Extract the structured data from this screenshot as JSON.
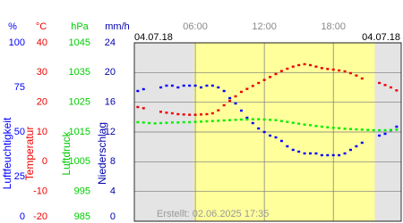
{
  "chart_data": {
    "type": "scatter",
    "date_left": "04.07.18",
    "date_right": "04.07.18",
    "credit": "Erstellt: 02.06.2025 17:35",
    "xlim": [
      0.7,
      23.9
    ],
    "xticks": [
      {
        "value": 6,
        "label": "06:00"
      },
      {
        "value": 12,
        "label": "12:00"
      },
      {
        "value": 18,
        "label": "18:00"
      }
    ],
    "daylight": [
      5.9,
      21.6
    ],
    "grid": true,
    "axes": [
      {
        "unit": "%",
        "title": "Luftfeuchtigkeit",
        "color": "#0000ff",
        "lim": [
          0,
          100
        ],
        "ticks": [
          0,
          25,
          50,
          75,
          100
        ]
      },
      {
        "unit": "°C",
        "title": "Temperatur",
        "color": "#ee0000",
        "lim": [
          -20,
          40
        ],
        "ticks": [
          -20,
          -10,
          0,
          10,
          20,
          30,
          40
        ]
      },
      {
        "unit": "hPa",
        "title": "Luftdruck",
        "color": "#00cc00",
        "lim": [
          985,
          1045
        ],
        "ticks": [
          985,
          995,
          1005,
          1015,
          1025,
          1035,
          1045
        ]
      },
      {
        "unit": "mm/h",
        "title": "Niederschlag",
        "color": "#0000aa",
        "lim": [
          0,
          24
        ],
        "ticks": [
          0,
          4,
          8,
          12,
          16,
          20,
          24
        ]
      }
    ],
    "x": [
      1,
      1.5,
      2,
      2.5,
      3,
      3.5,
      4,
      4.5,
      5,
      5.5,
      6,
      6.5,
      7,
      7.5,
      8,
      8.5,
      9,
      9.5,
      10,
      10.5,
      11,
      11.5,
      12,
      12.5,
      13,
      13.5,
      14,
      14.5,
      15,
      15.5,
      16,
      16.5,
      17,
      17.5,
      18,
      18.5,
      19,
      19.5,
      20,
      20.5,
      21,
      21.5,
      22,
      22.5,
      23,
      23.5
    ],
    "series": [
      {
        "axis": 0,
        "color": "#0000ff",
        "values": [
          73,
          74,
          null,
          null,
          75,
          76,
          76,
          75,
          76,
          76,
          76,
          75,
          76,
          76,
          75,
          73,
          69,
          66,
          62,
          58,
          55,
          52,
          50,
          48,
          47,
          45,
          42,
          40,
          39,
          38,
          38,
          38,
          37,
          37,
          37,
          37,
          38,
          40,
          42,
          44,
          null,
          null,
          48,
          49,
          51,
          53
        ]
      },
      {
        "axis": 1,
        "color": "#ee0000",
        "values": [
          18.4,
          18.0,
          null,
          null,
          16.8,
          16.5,
          16.3,
          16.0,
          15.9,
          15.8,
          15.8,
          15.9,
          16.0,
          16.3,
          17.3,
          19,
          20.5,
          22,
          23.5,
          24.5,
          25.5,
          26.5,
          27.5,
          28.5,
          29.5,
          30.5,
          31.3,
          32,
          32.5,
          32.8,
          32.5,
          32,
          31.5,
          31.2,
          31,
          30.7,
          30.4,
          29.8,
          29,
          28,
          null,
          null,
          26.5,
          25.8,
          25,
          24
        ]
      },
      {
        "axis": 2,
        "color": "#00ee00",
        "values": [
          1018.3,
          1018.2,
          1018.0,
          1017.9,
          1018.0,
          1018.1,
          1018.2,
          1018.2,
          1018.3,
          1018.3,
          1018.4,
          1018.5,
          1018.6,
          1018.7,
          1018.8,
          1018.9,
          1019.0,
          1019.1,
          1019.2,
          1019.2,
          1019.3,
          1019.3,
          1019.2,
          1019.1,
          1019.0,
          1018.7,
          1018.4,
          1018.1,
          1017.8,
          1017.5,
          1017.3,
          1017.0,
          1016.8,
          1016.6,
          1016.4,
          1016.3,
          1016.1,
          1016.0,
          1015.9,
          1015.8,
          1015.7,
          1015.6,
          1015.6,
          1015.6,
          1015.7,
          1015.8
        ]
      }
    ]
  }
}
